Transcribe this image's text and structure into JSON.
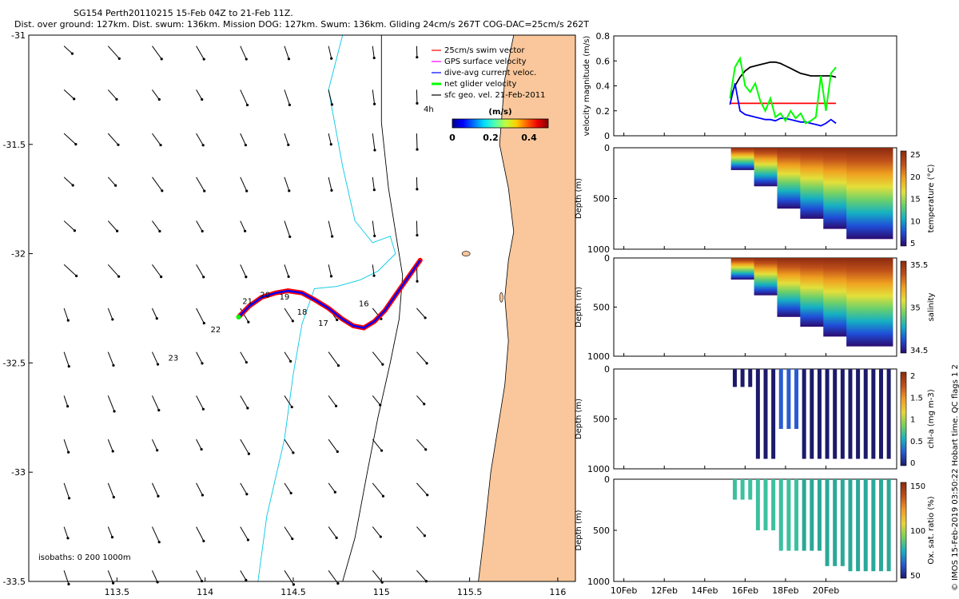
{
  "title_line1": "SG154 Perth20110215 15-Feb 04Z to 21-Feb 11Z.",
  "title_line2": "Dist. over ground: 127km. Dist. swum: 136km. Mission DOG: 127km. Swum: 136km. Gliding 24cm/s 267T COG-DAC=25cm/s 262T",
  "copyright": "© IMOS 15-Feb-2019 03:50:22 Hobart time. QC flags 1  2",
  "colors": {
    "land": "#f9c79b",
    "isobath_200": "#00c8e6",
    "isobath_1000": "#000000",
    "track_red": "#ff0000",
    "track_blue": "#0000ff",
    "green": "#00ff00",
    "magenta": "#ff00ff"
  },
  "chart_data": [
    {
      "type": "map",
      "xlim": [
        113.0,
        116.1
      ],
      "ylim": [
        -33.5,
        -31.0
      ],
      "xticks": [
        "113.5",
        "114",
        "114.5",
        "115",
        "115.5",
        "116"
      ],
      "yticks": [
        "-31",
        "-31.5",
        "-32",
        "-32.5",
        "-33",
        "-33.5"
      ],
      "legend": {
        "position": "top-right",
        "entries": [
          "25cm/s swim vector",
          "GPS surface velocity",
          "dive-avg current veloc.",
          "net glider velocity",
          "sfc geo. vel. 21-Feb-2011"
        ]
      },
      "scale_label": "4h",
      "colorbar": {
        "label": "(m/s)",
        "ticks": [
          "0",
          "0.2",
          "0.4"
        ],
        "range": [
          0,
          0.5
        ]
      },
      "isobaths_label": "isobaths: 0   200  1000m",
      "track_day_labels": [
        {
          "text": "16",
          "lon": 114.9,
          "lat": -32.24
        },
        {
          "text": "17",
          "lon": 114.67,
          "lat": -32.33
        },
        {
          "text": "18",
          "lon": 114.55,
          "lat": -32.28
        },
        {
          "text": "19",
          "lon": 114.45,
          "lat": -32.21
        },
        {
          "text": "20",
          "lon": 114.34,
          "lat": -32.2
        },
        {
          "text": "21",
          "lon": 114.24,
          "lat": -32.23
        },
        {
          "text": "22",
          "lon": 114.06,
          "lat": -32.36
        },
        {
          "text": "23",
          "lon": 113.82,
          "lat": -32.49
        }
      ],
      "track": [
        [
          115.22,
          -32.03
        ],
        [
          115.15,
          -32.11
        ],
        [
          115.08,
          -32.19
        ],
        [
          115.02,
          -32.26
        ],
        [
          114.96,
          -32.31
        ],
        [
          114.9,
          -32.34
        ],
        [
          114.84,
          -32.33
        ],
        [
          114.78,
          -32.3
        ],
        [
          114.7,
          -32.25
        ],
        [
          114.62,
          -32.21
        ],
        [
          114.55,
          -32.18
        ],
        [
          114.47,
          -32.17
        ],
        [
          114.4,
          -32.18
        ],
        [
          114.32,
          -32.2
        ],
        [
          114.25,
          -32.24
        ],
        [
          114.19,
          -32.29
        ]
      ]
    },
    {
      "type": "line",
      "ylabel": "velocity magnitude (m/s)",
      "ylim": [
        0,
        0.8
      ],
      "yticks": [
        "0",
        "0.2",
        "0.4",
        "0.6",
        "0.8"
      ],
      "x_start_day": 15.25,
      "x_step_days": 0.25,
      "series": [
        {
          "color": "#000000",
          "values": [
            0.3,
            0.4,
            0.47,
            0.52,
            0.55,
            0.56,
            0.57,
            0.58,
            0.59,
            0.59,
            0.58,
            0.56,
            0.54,
            0.52,
            0.5,
            0.49,
            0.48,
            0.48,
            0.48,
            0.48,
            0.48,
            0.47
          ]
        },
        {
          "color": "#ff0000",
          "values": [
            0.26,
            0.26,
            0.26,
            0.26,
            0.26,
            0.26,
            0.26,
            0.26,
            0.26,
            0.26,
            0.26,
            0.26,
            0.26,
            0.26,
            0.26,
            0.26,
            0.26,
            0.26,
            0.26,
            0.26,
            0.26,
            0.26
          ]
        },
        {
          "color": "#0000ff",
          "values": [
            0.25,
            0.42,
            0.2,
            0.17,
            0.16,
            0.15,
            0.14,
            0.13,
            0.13,
            0.12,
            0.14,
            0.14,
            0.13,
            0.12,
            0.11,
            0.11,
            0.1,
            0.09,
            0.08,
            0.1,
            0.13,
            0.1
          ]
        },
        {
          "color": "#00ff00",
          "values": [
            0.3,
            0.55,
            0.62,
            0.4,
            0.35,
            0.42,
            0.28,
            0.2,
            0.3,
            0.15,
            0.18,
            0.12,
            0.2,
            0.14,
            0.18,
            0.1,
            0.12,
            0.15,
            0.48,
            0.2,
            0.5,
            0.55
          ]
        }
      ]
    },
    {
      "type": "heatmap",
      "ylabel": "Depth (m)",
      "clabel": "temperature (°C)",
      "ylim": [
        1000,
        0
      ],
      "yticks": [
        "0",
        "500",
        "1000"
      ],
      "cticks": [
        "5",
        "10",
        "15",
        "20",
        "25"
      ]
    },
    {
      "type": "heatmap",
      "ylabel": "Depth (m)",
      "clabel": "salinity",
      "ylim": [
        1000,
        0
      ],
      "yticks": [
        "0",
        "500",
        "1000"
      ],
      "cticks": [
        "34.5",
        "35",
        "35.5"
      ]
    },
    {
      "type": "heatmap",
      "ylabel": "Depth (m)",
      "clabel": "chl-a (mg m-3)",
      "ylim": [
        1000,
        0
      ],
      "yticks": [
        "0",
        "500",
        "1000"
      ],
      "cticks": [
        "0",
        "0.5",
        "1",
        "1.5",
        "2"
      ]
    },
    {
      "type": "heatmap",
      "ylabel": "Depth (m)",
      "clabel": "Ox. sat. ratio (%)",
      "ylim": [
        1000,
        0
      ],
      "yticks": [
        "0",
        "500",
        "1000"
      ],
      "cticks": [
        "50",
        "100",
        "150"
      ]
    },
    {
      "type": "axis",
      "xlim_days": [
        9.5,
        23.5
      ],
      "xticks": [
        {
          "label": "10Feb",
          "day": 10
        },
        {
          "label": "12Feb",
          "day": 12
        },
        {
          "label": "14Feb",
          "day": 14
        },
        {
          "label": "16Feb",
          "day": 16
        },
        {
          "label": "18Feb",
          "day": 18
        },
        {
          "label": "20Feb",
          "day": 20
        }
      ]
    }
  ]
}
